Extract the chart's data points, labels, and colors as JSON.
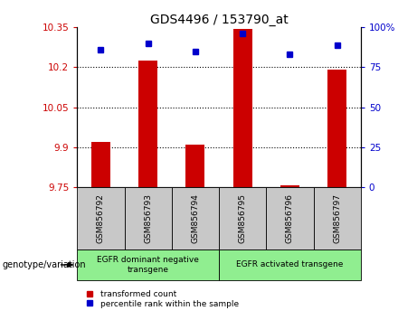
{
  "title": "GDS4496 / 153790_at",
  "samples": [
    "GSM856792",
    "GSM856793",
    "GSM856794",
    "GSM856795",
    "GSM856796",
    "GSM856797"
  ],
  "transformed_count": [
    9.92,
    10.225,
    9.91,
    10.345,
    9.758,
    10.19
  ],
  "percentile_rank": [
    86,
    90,
    85,
    96,
    83,
    89
  ],
  "ylim_left": [
    9.75,
    10.35
  ],
  "ylim_right": [
    0,
    100
  ],
  "yticks_left": [
    9.75,
    9.9,
    10.05,
    10.2,
    10.35
  ],
  "yticks_right": [
    0,
    25,
    50,
    75,
    100
  ],
  "ytick_labels_left": [
    "9.75",
    "9.9",
    "10.05",
    "10.2",
    "10.35"
  ],
  "ytick_labels_right": [
    "0",
    "25",
    "50",
    "75",
    "100%"
  ],
  "bar_color": "#cc0000",
  "dot_color": "#0000cc",
  "bar_bottom": 9.75,
  "groups": [
    {
      "label": "EGFR dominant negative\ntransgene",
      "n_samples": 3,
      "color": "#90ee90"
    },
    {
      "label": "EGFR activated transgene",
      "n_samples": 3,
      "color": "#90ee90"
    }
  ],
  "group_label_text": "genotype/variation",
  "legend_items": [
    {
      "color": "#cc0000",
      "label": "transformed count"
    },
    {
      "color": "#0000cc",
      "label": "percentile rank within the sample"
    }
  ],
  "grid_color": "black",
  "background_color": "#ffffff",
  "plot_bg_color": "#ffffff",
  "x_tick_bg_color": "#c8c8c8",
  "bar_width": 0.4
}
